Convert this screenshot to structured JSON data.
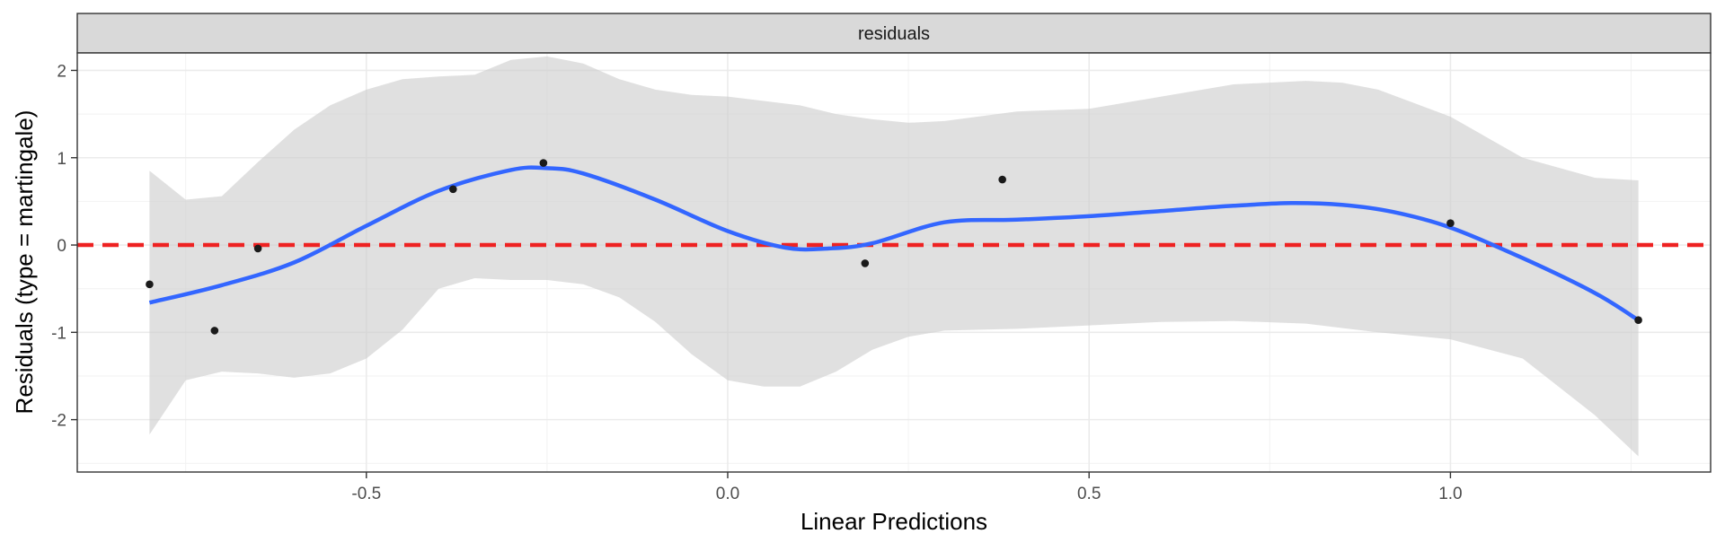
{
  "chart_data": {
    "type": "scatter",
    "facet_label": "residuals",
    "xlabel": "Linear Predictions",
    "ylabel": "Residuals (type = martingale)",
    "xlim": [
      -0.9,
      1.36
    ],
    "ylim": [
      -2.6,
      2.2
    ],
    "x_ticks": [
      -0.5,
      0.0,
      0.5,
      1.0
    ],
    "x_tick_labels": [
      "-0.5",
      "0.0",
      "0.5",
      "1.0"
    ],
    "y_ticks": [
      -2,
      -1,
      0,
      1,
      2
    ],
    "y_tick_labels": [
      "-2",
      "-1",
      "0",
      "1",
      "2"
    ],
    "grid": true,
    "reference_line": {
      "y": 0,
      "style": "dashed",
      "color": "#ee2222"
    },
    "points": {
      "color": "#1a1a1a",
      "x": [
        -0.8,
        -0.71,
        -0.65,
        -0.38,
        -0.255,
        0.19,
        0.38,
        1.0,
        1.26
      ],
      "y": [
        -0.45,
        -0.98,
        -0.04,
        0.64,
        0.94,
        -0.21,
        0.75,
        0.25,
        -0.86
      ]
    },
    "smooth": {
      "color": "#3366ff",
      "x": [
        -0.8,
        -0.7,
        -0.6,
        -0.5,
        -0.4,
        -0.3,
        -0.25,
        -0.2,
        -0.1,
        0.0,
        0.08,
        0.14,
        0.2,
        0.3,
        0.4,
        0.5,
        0.6,
        0.7,
        0.78,
        0.85,
        0.92,
        1.0,
        1.1,
        1.2,
        1.26
      ],
      "y": [
        -0.66,
        -0.46,
        -0.2,
        0.22,
        0.62,
        0.86,
        0.88,
        0.82,
        0.52,
        0.16,
        -0.03,
        -0.04,
        0.02,
        0.26,
        0.29,
        0.33,
        0.39,
        0.45,
        0.48,
        0.46,
        0.38,
        0.2,
        -0.15,
        -0.55,
        -0.86
      ]
    },
    "ribbon": {
      "color": "#cccccc",
      "x": [
        -0.8,
        -0.75,
        -0.7,
        -0.65,
        -0.6,
        -0.55,
        -0.5,
        -0.45,
        -0.4,
        -0.35,
        -0.3,
        -0.25,
        -0.2,
        -0.15,
        -0.1,
        -0.05,
        0.0,
        0.05,
        0.1,
        0.15,
        0.2,
        0.25,
        0.3,
        0.4,
        0.5,
        0.6,
        0.7,
        0.8,
        0.85,
        0.9,
        1.0,
        1.1,
        1.2,
        1.26
      ],
      "ymin": [
        -2.17,
        -1.55,
        -1.45,
        -1.47,
        -1.52,
        -1.47,
        -1.3,
        -0.97,
        -0.5,
        -0.38,
        -0.4,
        -0.4,
        -0.45,
        -0.6,
        -0.88,
        -1.25,
        -1.55,
        -1.62,
        -1.62,
        -1.45,
        -1.2,
        -1.05,
        -0.98,
        -0.96,
        -0.92,
        -0.88,
        -0.87,
        -0.9,
        -0.95,
        -1.0,
        -1.08,
        -1.3,
        -1.95,
        -2.42
      ],
      "ymax": [
        0.85,
        0.52,
        0.56,
        0.95,
        1.32,
        1.6,
        1.78,
        1.9,
        1.93,
        1.95,
        2.12,
        2.16,
        2.08,
        1.9,
        1.78,
        1.72,
        1.7,
        1.65,
        1.6,
        1.5,
        1.44,
        1.4,
        1.42,
        1.53,
        1.56,
        1.7,
        1.84,
        1.88,
        1.86,
        1.78,
        1.47,
        1.0,
        0.77,
        0.74
      ]
    }
  }
}
